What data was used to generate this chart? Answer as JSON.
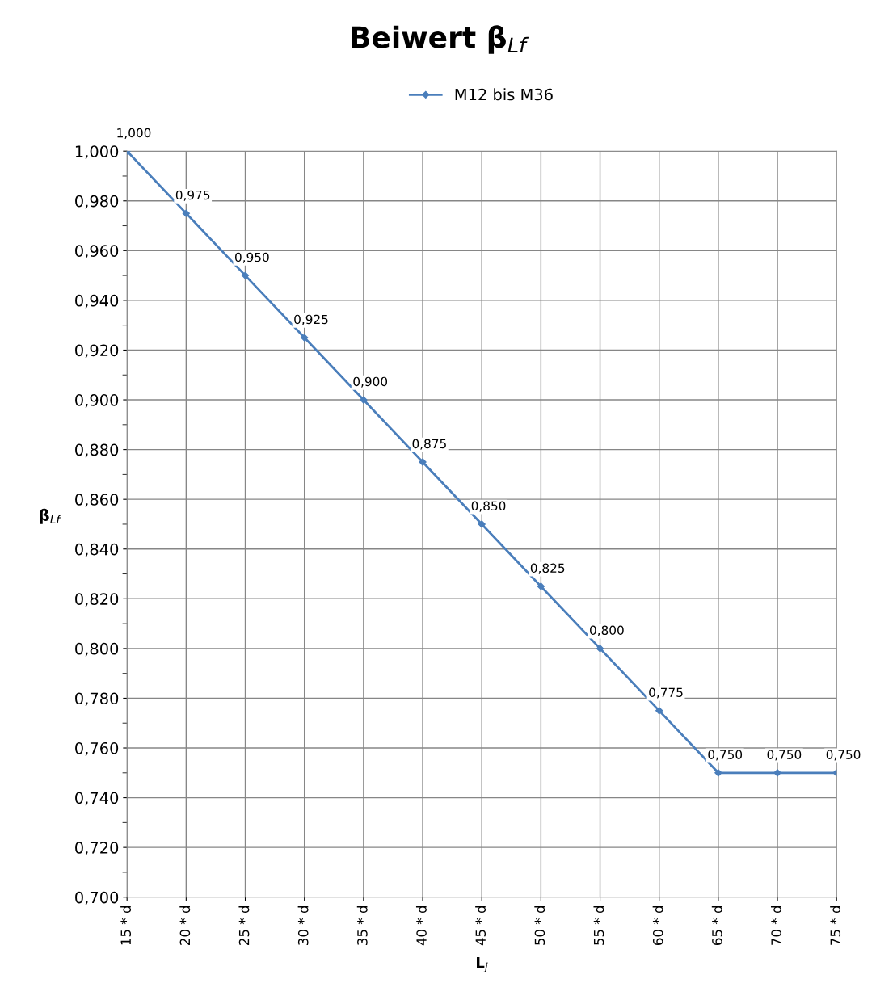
{
  "chart_data": {
    "type": "line",
    "title": "Beiwert β$_{Lf}$",
    "xlabel": "L$_{j}$",
    "ylabel": "β$_{Lf}$",
    "categories": [
      "15 * d",
      "20 * d",
      "25 * d",
      "30 * d",
      "35 * d",
      "40 * d",
      "45 * d",
      "50 * d",
      "55 * d",
      "60 * d",
      "65 * d",
      "70 * d",
      "75 * d"
    ],
    "series": [
      {
        "name": "M12 bis M36",
        "color": "#4a7ebb",
        "values": [
          1.0,
          0.975,
          0.95,
          0.925,
          0.9,
          0.875,
          0.85,
          0.825,
          0.8,
          0.775,
          0.75,
          0.75,
          0.75
        ],
        "value_labels": [
          "1,000",
          "0,975",
          "0,950",
          "0,925",
          "0,900",
          "0,875",
          "0,850",
          "0,825",
          "0,800",
          "0,775",
          "0,750",
          "0,750",
          "0,750"
        ]
      }
    ],
    "ylim": [
      0.7,
      1.0
    ],
    "yticks": [
      {
        "value": 0.7,
        "label": "0,700"
      },
      {
        "value": 0.72,
        "label": "0,720"
      },
      {
        "value": 0.74,
        "label": "0,740"
      },
      {
        "value": 0.76,
        "label": "0,760"
      },
      {
        "value": 0.78,
        "label": "0,780"
      },
      {
        "value": 0.8,
        "label": "0,800"
      },
      {
        "value": 0.82,
        "label": "0,820"
      },
      {
        "value": 0.84,
        "label": "0,840"
      },
      {
        "value": 0.86,
        "label": "0,860"
      },
      {
        "value": 0.88,
        "label": "0,880"
      },
      {
        "value": 0.9,
        "label": "0,900"
      },
      {
        "value": 0.92,
        "label": "0,920"
      },
      {
        "value": 0.94,
        "label": "0,940"
      },
      {
        "value": 0.96,
        "label": "0,960"
      },
      {
        "value": 0.98,
        "label": "0,980"
      },
      {
        "value": 1.0,
        "label": "1,000"
      }
    ],
    "grid": true,
    "legend": "top",
    "marker": "diamond",
    "line_style": "solid"
  }
}
